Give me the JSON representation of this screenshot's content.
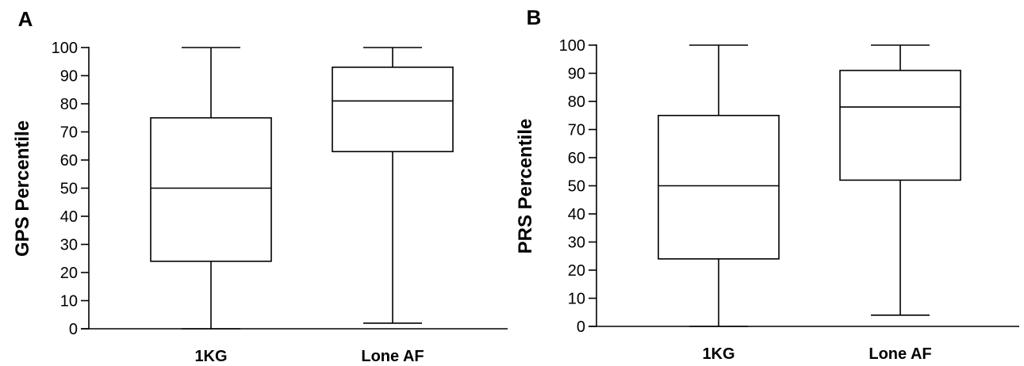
{
  "chart_data": [
    {
      "type": "box",
      "panel_label": "A",
      "ylabel": "GPS Percentile",
      "xlabel": "",
      "ylim": [
        0,
        100
      ],
      "yticks": [
        0,
        10,
        20,
        30,
        40,
        50,
        60,
        70,
        80,
        90,
        100
      ],
      "categories": [
        "1KG",
        "Lone AF"
      ],
      "boxes": [
        {
          "category": "1KG",
          "min": 0,
          "q1": 24,
          "median": 50,
          "q3": 75,
          "max": 100
        },
        {
          "category": "Lone AF",
          "min": 2,
          "q1": 63,
          "median": 81,
          "q3": 93,
          "max": 100
        }
      ],
      "grid": false
    },
    {
      "type": "box",
      "panel_label": "B",
      "ylabel": "PRS Percentile",
      "xlabel": "",
      "ylim": [
        0,
        100
      ],
      "yticks": [
        0,
        10,
        20,
        30,
        40,
        50,
        60,
        70,
        80,
        90,
        100
      ],
      "categories": [
        "1KG",
        "Lone AF"
      ],
      "boxes": [
        {
          "category": "1KG",
          "min": 0,
          "q1": 24,
          "median": 50,
          "q3": 75,
          "max": 100
        },
        {
          "category": "Lone AF",
          "min": 4,
          "q1": 52,
          "median": 78,
          "q3": 91,
          "max": 100
        }
      ],
      "grid": false
    }
  ]
}
